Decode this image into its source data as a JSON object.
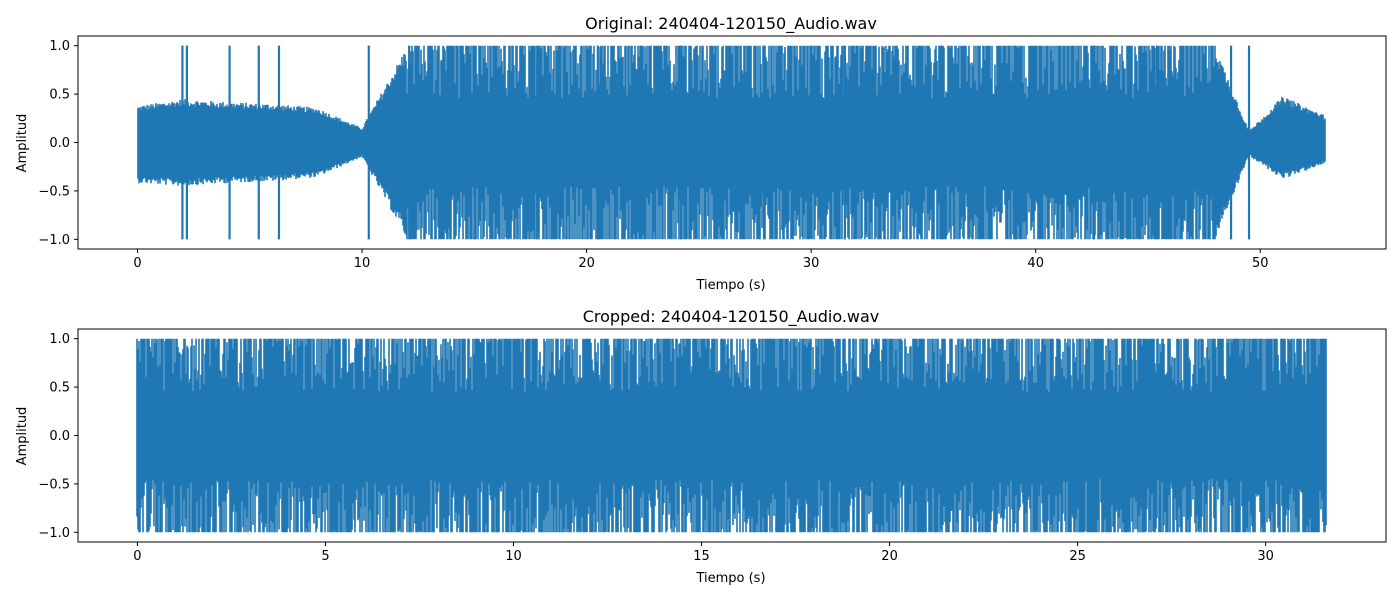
{
  "colors": {
    "signal": "#1f77b4",
    "axes": "#000000",
    "background": "#ffffff"
  },
  "chart_data": [
    {
      "type": "line",
      "title": "Original: 240404-120150_Audio.wav",
      "xlabel": "Tiempo (s)",
      "ylabel": "Amplitud",
      "xlim": [
        -2.65,
        55.6
      ],
      "ylim": [
        -1.1,
        1.1
      ],
      "xticks": [
        0,
        10,
        20,
        30,
        40,
        50
      ],
      "xtick_labels": [
        "0",
        "10",
        "20",
        "30",
        "40",
        "50"
      ],
      "yticks": [
        -1.0,
        -0.5,
        0.0,
        0.5,
        1.0
      ],
      "ytick_labels": [
        "−1.0",
        "−0.5",
        "0.0",
        "0.5",
        "1.0"
      ],
      "grid": false,
      "series": [
        {
          "x": [
            0,
            2,
            4,
            6,
            8,
            10,
            12,
            14,
            16,
            18,
            20,
            22,
            24,
            26,
            28,
            30,
            32,
            34,
            36,
            38,
            40,
            42,
            44,
            46,
            48,
            49.5,
            51,
            52.9
          ],
          "amp_hi": [
            0.38,
            0.45,
            0.42,
            0.4,
            0.36,
            0.15,
            1.0,
            1.0,
            1.0,
            1.0,
            1.0,
            1.0,
            1.0,
            1.0,
            1.0,
            1.0,
            1.0,
            1.0,
            1.0,
            1.0,
            1.0,
            1.0,
            1.0,
            1.0,
            1.0,
            0.12,
            0.48,
            0.28
          ],
          "amp_lo": [
            -0.42,
            -0.45,
            -0.42,
            -0.4,
            -0.36,
            -0.15,
            -1.0,
            -1.0,
            -1.0,
            -1.0,
            -1.0,
            -1.0,
            -1.0,
            -1.0,
            -1.0,
            -1.0,
            -1.0,
            -1.0,
            -1.0,
            -1.0,
            -1.0,
            -1.0,
            -1.0,
            -1.0,
            -1.0,
            -0.14,
            -0.38,
            -0.22
          ]
        }
      ],
      "clip_spikes": [
        2.0,
        2.2,
        4.1,
        5.4,
        6.3,
        10.3,
        12.1,
        15.0,
        17.8,
        20.5,
        24.2,
        27.9,
        31.5,
        35.8,
        39.1,
        42.6,
        45.4,
        48.7,
        49.5
      ]
    },
    {
      "type": "line",
      "title": "Cropped: 240404-120150_Audio.wav",
      "xlabel": "Tiempo (s)",
      "ylabel": "Amplitud",
      "xlim": [
        -1.58,
        33.2
      ],
      "ylim": [
        -1.1,
        1.1
      ],
      "xticks": [
        0,
        5,
        10,
        15,
        20,
        25,
        30
      ],
      "xtick_labels": [
        "0",
        "5",
        "10",
        "15",
        "20",
        "25",
        "30"
      ],
      "yticks": [
        -1.0,
        -0.5,
        0.0,
        0.5,
        1.0
      ],
      "ytick_labels": [
        "−1.0",
        "−0.5",
        "0.0",
        "0.5",
        "1.0"
      ],
      "grid": false,
      "series": [
        {
          "x": [
            0,
            5,
            10,
            15,
            20,
            25,
            30,
            31.6
          ],
          "amp_hi": [
            1.0,
            1.0,
            1.0,
            1.0,
            1.0,
            1.0,
            1.0,
            1.0
          ],
          "amp_lo": [
            -1.0,
            -1.0,
            -1.0,
            -1.0,
            -1.0,
            -1.0,
            -1.0,
            -1.0
          ]
        }
      ],
      "clip_spikes": []
    }
  ]
}
